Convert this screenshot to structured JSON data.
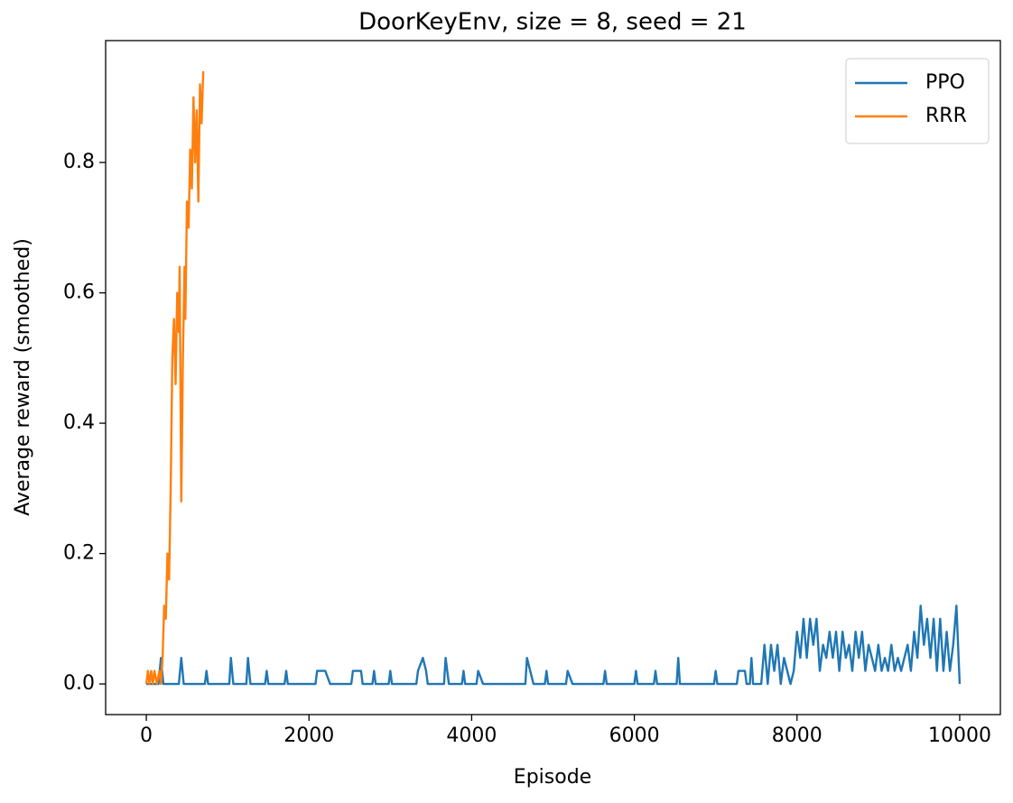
{
  "chart_data": {
    "type": "line",
    "title": "DoorKeyEnv, size = 8, seed = 21",
    "xlabel": "Episode",
    "ylabel": "Average reward (smoothed)",
    "xlim": [
      -500,
      10500
    ],
    "ylim": [
      -0.047,
      0.987
    ],
    "xticks": [
      0,
      2000,
      4000,
      6000,
      8000,
      10000
    ],
    "yticks": [
      {
        "value": 0,
        "label": "0.0"
      },
      0.2,
      0.4,
      0.6,
      0.8
    ],
    "legend": "upper right",
    "grid": false,
    "series": [
      {
        "name": "PPO",
        "color": "#1f77b4",
        "x": [
          0,
          150,
          180,
          210,
          400,
          430,
          460,
          720,
          740,
          760,
          1020,
          1040,
          1070,
          1230,
          1250,
          1280,
          1460,
          1480,
          1500,
          1700,
          1720,
          1740,
          2080,
          2100,
          2200,
          2260,
          2520,
          2540,
          2640,
          2660,
          2780,
          2800,
          2820,
          2980,
          3000,
          3020,
          3320,
          3340,
          3400,
          3440,
          3460,
          3660,
          3680,
          3720,
          3880,
          3900,
          3920,
          4060,
          4080,
          4140,
          4660,
          4680,
          4720,
          4760,
          4900,
          4920,
          4940,
          5160,
          5180,
          5240,
          5620,
          5640,
          5660,
          6000,
          6020,
          6040,
          6240,
          6260,
          6280,
          6520,
          6540,
          6560,
          6980,
          7000,
          7020,
          7260,
          7280,
          7360,
          7380,
          7420,
          7440,
          7460,
          7560,
          7600,
          7640,
          7680,
          7720,
          7760,
          7800,
          7840,
          7880,
          7920,
          7960,
          8000,
          8040,
          8080,
          8120,
          8160,
          8200,
          8240,
          8280,
          8320,
          8360,
          8400,
          8440,
          8480,
          8520,
          8560,
          8600,
          8640,
          8680,
          8720,
          8760,
          8800,
          8840,
          8880,
          8920,
          8960,
          9000,
          9040,
          9080,
          9120,
          9160,
          9200,
          9240,
          9280,
          9320,
          9360,
          9400,
          9440,
          9480,
          9520,
          9560,
          9600,
          9640,
          9680,
          9720,
          9760,
          9800,
          9840,
          9880,
          9920,
          9960,
          10000
        ],
        "values": [
          0,
          0,
          0.04,
          0,
          0,
          0.04,
          0,
          0,
          0.02,
          0,
          0,
          0.04,
          0,
          0,
          0.04,
          0,
          0,
          0.02,
          0,
          0,
          0.02,
          0,
          0,
          0.02,
          0.02,
          0,
          0,
          0.02,
          0.02,
          0,
          0,
          0.02,
          0,
          0,
          0.02,
          0,
          0,
          0.02,
          0.04,
          0.02,
          0,
          0,
          0.04,
          0,
          0,
          0.02,
          0,
          0,
          0.02,
          0,
          0,
          0.04,
          0.02,
          0,
          0,
          0.02,
          0,
          0,
          0.02,
          0,
          0,
          0.02,
          0,
          0,
          0.02,
          0,
          0,
          0.02,
          0,
          0,
          0.04,
          0,
          0,
          0.02,
          0,
          0,
          0.02,
          0.02,
          0,
          0,
          0.04,
          0,
          0,
          0.06,
          0,
          0.06,
          0.02,
          0.06,
          0,
          0.04,
          0.02,
          0,
          0.02,
          0.08,
          0.04,
          0.1,
          0.04,
          0.1,
          0.06,
          0.1,
          0.02,
          0.06,
          0.04,
          0.08,
          0.04,
          0.08,
          0.02,
          0.08,
          0.04,
          0.06,
          0.02,
          0.08,
          0.04,
          0.08,
          0.02,
          0.06,
          0.04,
          0.02,
          0.06,
          0.02,
          0.04,
          0.02,
          0.06,
          0.02,
          0.04,
          0.02,
          0.04,
          0.06,
          0.02,
          0.08,
          0.04,
          0.12,
          0.06,
          0.1,
          0.04,
          0.1,
          0.02,
          0.1,
          0.02,
          0.08,
          0.02,
          0.06,
          0.12,
          0
        ]
      },
      {
        "name": "RRR",
        "color": "#ff7f0e",
        "x": [
          0,
          20,
          40,
          60,
          80,
          100,
          130,
          160,
          180,
          200,
          220,
          240,
          260,
          280,
          300,
          320,
          340,
          360,
          380,
          400,
          410,
          430,
          450,
          470,
          480,
          500,
          520,
          540,
          560,
          580,
          600,
          620,
          640,
          660,
          680,
          700
        ],
        "values": [
          0,
          0.02,
          0,
          0.02,
          0,
          0.02,
          0,
          0.02,
          0,
          0.04,
          0.12,
          0.1,
          0.2,
          0.16,
          0.3,
          0.5,
          0.56,
          0.46,
          0.6,
          0.54,
          0.64,
          0.28,
          0.5,
          0.64,
          0.56,
          0.74,
          0.7,
          0.82,
          0.76,
          0.9,
          0.8,
          0.88,
          0.74,
          0.92,
          0.86,
          0.94
        ]
      }
    ]
  }
}
